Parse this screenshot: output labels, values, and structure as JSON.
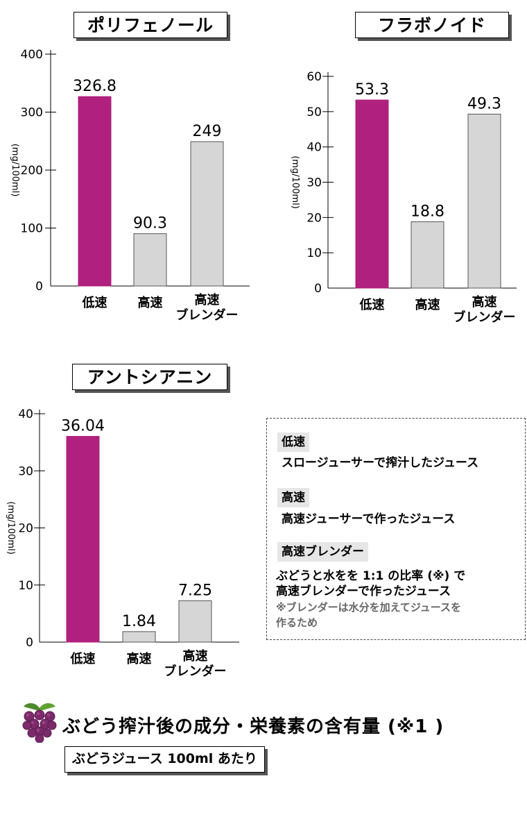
{
  "colors": {
    "highlight": "#b0207e",
    "neutral": "#d6d6d6",
    "grape": "#7b2a6b",
    "leaf": "#4c8a2a"
  },
  "chart_data": [
    {
      "type": "bar",
      "title": "ポリフェノール",
      "ylabel": "(mg/100ml)",
      "categories": [
        "低速",
        "高速",
        "高速\nブレンダー"
      ],
      "values": [
        326.8,
        90.3,
        249
      ],
      "value_labels": [
        "326.8",
        "90.3",
        "249"
      ],
      "ylim": [
        0,
        400
      ],
      "yticks": [
        0,
        100,
        200,
        300,
        400
      ],
      "highlight_index": 0
    },
    {
      "type": "bar",
      "title": "フラボノイド",
      "ylabel": "(mg/100ml)",
      "categories": [
        "低速",
        "高速",
        "高速\nブレンダー"
      ],
      "values": [
        53.3,
        18.8,
        49.3
      ],
      "value_labels": [
        "53.3",
        "18.8",
        "49.3"
      ],
      "ylim": [
        0,
        60
      ],
      "yticks": [
        0,
        10,
        20,
        30,
        40,
        50,
        60
      ],
      "highlight_index": 0
    },
    {
      "type": "bar",
      "title": "アントシアニン",
      "ylabel": "(mg/100ml)",
      "categories": [
        "低速",
        "高速",
        "高速\nブレンダー"
      ],
      "values": [
        36.04,
        1.84,
        7.25
      ],
      "value_labels": [
        "36.04",
        "1.84",
        "7.25"
      ],
      "ylim": [
        0,
        40
      ],
      "yticks": [
        0,
        10,
        20,
        30,
        40
      ],
      "highlight_index": 0
    }
  ],
  "legend": {
    "slow_tag": "低速",
    "slow_desc": "スロージューサーで搾汁したジュース",
    "fast_tag": "高速",
    "fast_desc": "高速ジューサーで作ったジュース",
    "blender_tag": "高速ブレンダー",
    "blender_desc_1": "ぶどうと水をを 1:1 の比率 (※) で",
    "blender_desc_2": "高速ブレンダーで作ったジュース",
    "blender_note_1": "※ブレンダーは水分を加えてジュースを",
    "blender_note_2": "作るため"
  },
  "footer": {
    "icon": "grape-icon",
    "title": "ぶどう搾汁後の成分・栄養素の含有量 (※1 )",
    "subtitle": "ぶどうジュース 100ml あたり"
  }
}
